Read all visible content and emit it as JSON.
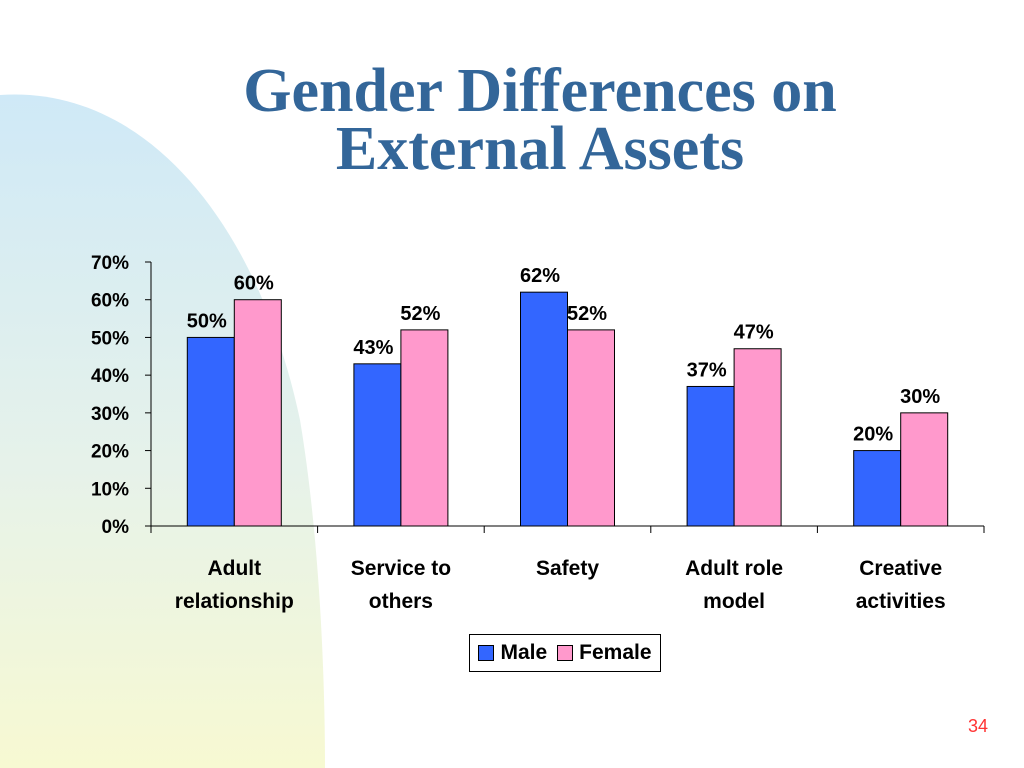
{
  "title_lines": [
    "Gender Differences on",
    "External Assets"
  ],
  "page_number": "34",
  "colors": {
    "male": "#3366ff",
    "female": "#ff99cc",
    "title": "#336699"
  },
  "chart_data": {
    "type": "bar",
    "title": "",
    "xlabel": "",
    "ylabel": "",
    "ylim": [
      0,
      70
    ],
    "yticks": [
      "0%",
      "10%",
      "20%",
      "30%",
      "40%",
      "50%",
      "60%",
      "70%"
    ],
    "categories": [
      [
        "Adult",
        "relationship"
      ],
      [
        "Service to",
        "others"
      ],
      [
        "Safety"
      ],
      [
        "Adult role",
        "model"
      ],
      [
        "Creative",
        "activities"
      ]
    ],
    "series": [
      {
        "name": "Male",
        "color": "#3366ff",
        "values": [
          50,
          43,
          62,
          37,
          20
        ],
        "labels": [
          "50%",
          "43%",
          "62%",
          "37%",
          "20%"
        ]
      },
      {
        "name": "Female",
        "color": "#ff99cc",
        "values": [
          60,
          52,
          52,
          47,
          30
        ],
        "labels": [
          "60%",
          "52%",
          "52%",
          "47%",
          "30%"
        ]
      }
    ],
    "grid": false,
    "legend": "bottom"
  }
}
